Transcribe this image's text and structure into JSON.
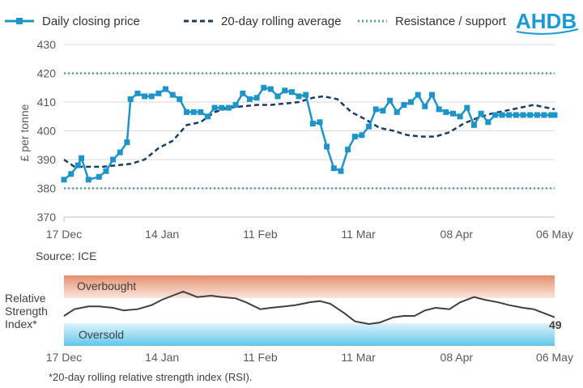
{
  "legend": {
    "daily": "Daily closing price",
    "rolling": "20-day rolling average",
    "resistance": "Resistance / support"
  },
  "logo_text": "AHDB",
  "source": "Source: ICE",
  "footnote": "*20-day rolling relative strength index (RSI).",
  "rsi_panel": {
    "label_lines": [
      "Relative",
      "Strength",
      "Index*"
    ],
    "overbought": "Overbought",
    "oversold": "Oversold",
    "latest_value": "49"
  },
  "colors": {
    "daily": "#1f94c8",
    "rolling": "#1b3d5e",
    "resistance": "#5b9fa0",
    "rsi_line": "#404040",
    "overbought_top": "#e58f6e",
    "oversold_bottom": "#62c6ec",
    "logo": "#1b9ad6"
  },
  "chart_data": [
    {
      "type": "line",
      "ylabel": "£ per tonne",
      "ylim": [
        370,
        430
      ],
      "yticks": [
        370,
        380,
        390,
        400,
        410,
        420,
        430
      ],
      "xlim": [
        "17 Dec",
        "06 May"
      ],
      "xtick_labels": [
        "17 Dec",
        "14 Jan",
        "11 Feb",
        "11 Mar",
        "08 Apr",
        "06 May"
      ],
      "grid": true,
      "legend_position": "top",
      "resistance_support": [
        420,
        380
      ],
      "series": [
        {
          "name": "Daily closing price",
          "x": [
            "17 Dec",
            "19 Dec",
            "21 Dec",
            "22 Dec",
            "24 Dec",
            "27 Dec",
            "29 Dec",
            "31 Dec",
            "02 Jan",
            "04 Jan",
            "05 Jan",
            "07 Jan",
            "09 Jan",
            "11 Jan",
            "13 Jan",
            "15 Jan",
            "17 Jan",
            "19 Jan",
            "21 Jan",
            "23 Jan",
            "25 Jan",
            "27 Jan",
            "29 Jan",
            "31 Jan",
            "02 Feb",
            "04 Feb",
            "06 Feb",
            "08 Feb",
            "10 Feb",
            "12 Feb",
            "14 Feb",
            "16 Feb",
            "18 Feb",
            "20 Feb",
            "22 Feb",
            "24 Feb",
            "26 Feb",
            "28 Feb",
            "02 Mar",
            "04 Mar",
            "06 Mar",
            "08 Mar",
            "10 Mar",
            "12 Mar",
            "14 Mar",
            "16 Mar",
            "18 Mar",
            "20 Mar",
            "22 Mar",
            "24 Mar",
            "26 Mar",
            "28 Mar",
            "30 Mar",
            "01 Apr",
            "03 Apr",
            "05 Apr",
            "07 Apr",
            "09 Apr",
            "11 Apr",
            "13 Apr",
            "15 Apr",
            "17 Apr",
            "19 Apr",
            "21 Apr",
            "23 Apr",
            "25 Apr",
            "27 Apr",
            "29 Apr",
            "01 May",
            "03 May",
            "05 May",
            "06 May"
          ],
          "y": [
            383,
            385,
            388,
            390.5,
            383,
            384,
            386,
            390,
            392.5,
            396,
            411,
            413,
            412,
            412,
            413,
            414.5,
            412.5,
            411,
            406.5,
            406.5,
            406.5,
            405,
            408,
            408,
            408,
            409,
            413,
            411,
            411.5,
            415,
            414.5,
            412,
            414,
            413.5,
            412,
            412.5,
            402.5,
            403,
            394.5,
            387,
            386,
            393.5,
            398,
            398.5,
            401.5,
            407.5,
            407,
            410.5,
            406.5,
            409,
            410,
            412.5,
            408.5,
            412.5,
            407.5,
            406.5,
            406,
            405,
            408,
            402,
            406,
            403,
            405.5,
            405.5,
            405.5,
            405.5,
            405.5,
            405.5,
            405.5,
            405.5,
            405.5,
            405.5
          ]
        },
        {
          "name": "20-day rolling average",
          "x": [
            "17 Dec",
            "20 Dec",
            "24 Dec",
            "28 Dec",
            "01 Jan",
            "05 Jan",
            "09 Jan",
            "13 Jan",
            "17 Jan",
            "21 Jan",
            "25 Jan",
            "29 Jan",
            "02 Feb",
            "06 Feb",
            "10 Feb",
            "14 Feb",
            "18 Feb",
            "22 Feb",
            "26 Feb",
            "01 Mar",
            "05 Mar",
            "09 Mar",
            "13 Mar",
            "17 Mar",
            "21 Mar",
            "25 Mar",
            "29 Mar",
            "02 Apr",
            "06 Apr",
            "10 Apr",
            "14 Apr",
            "18 Apr",
            "22 Apr",
            "26 Apr",
            "30 Apr",
            "04 May",
            "06 May"
          ],
          "y": [
            390,
            387.5,
            387.5,
            387.5,
            388,
            388.5,
            390,
            394,
            396.5,
            402,
            403,
            406.5,
            408,
            408.5,
            409,
            409,
            409.5,
            410,
            411.5,
            412,
            411,
            406.5,
            404,
            401,
            400,
            398.5,
            398,
            398,
            399.5,
            402.5,
            404.5,
            406,
            407,
            408,
            409,
            408,
            407.5
          ]
        }
      ]
    },
    {
      "type": "line",
      "title": "Relative Strength Index*",
      "xtick_labels": [
        "17 Dec",
        "14 Jan",
        "11 Feb",
        "11 Mar",
        "08 Apr",
        "06 May"
      ],
      "bands": [
        "Overbought",
        "Oversold"
      ],
      "series": [
        {
          "name": "RSI",
          "x": [
            "17 Dec",
            "20 Dec",
            "24 Dec",
            "27 Dec",
            "31 Dec",
            "03 Jan",
            "07 Jan",
            "11 Jan",
            "14 Jan",
            "17 Jan",
            "20 Jan",
            "24 Jan",
            "28 Jan",
            "31 Jan",
            "04 Feb",
            "07 Feb",
            "11 Feb",
            "14 Feb",
            "18 Feb",
            "21 Feb",
            "25 Feb",
            "28 Feb",
            "03 Mar",
            "07 Mar",
            "10 Mar",
            "14 Mar",
            "17 Mar",
            "21 Mar",
            "24 Mar",
            "27 Mar",
            "30 Mar",
            "02 Apr",
            "06 Apr",
            "09 Apr",
            "13 Apr",
            "16 Apr",
            "20 Apr",
            "23 Apr",
            "27 Apr",
            "30 Apr",
            "03 May",
            "06 May"
          ],
          "y": [
            50,
            55,
            57,
            57,
            56,
            54,
            55,
            58,
            62,
            65,
            68,
            64,
            65,
            64,
            63,
            60,
            55,
            56,
            57,
            58,
            60,
            61,
            59,
            52,
            46,
            44,
            45,
            49,
            50,
            50,
            54,
            56,
            55,
            60,
            64,
            62,
            60,
            58,
            56,
            55,
            52,
            49
          ]
        }
      ]
    }
  ]
}
